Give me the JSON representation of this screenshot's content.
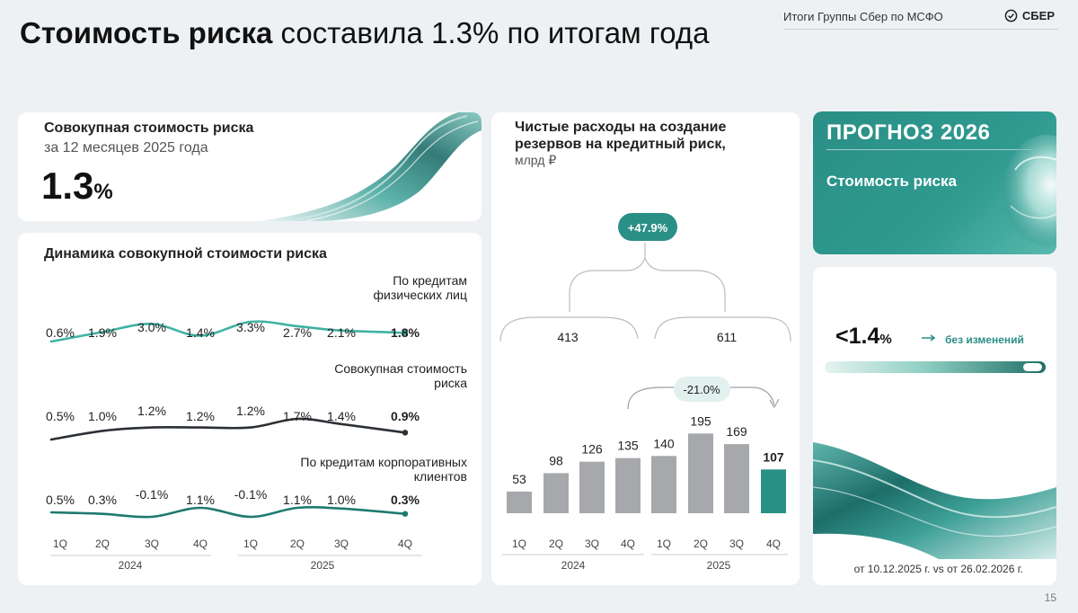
{
  "header": {
    "title_bold": "Стоимость риска",
    "title_rest": " составила 1.3% по итогам года",
    "subtitle": "Итоги Группы Сбер по МСФО",
    "logo_text": "СБЕР",
    "page_number": "15",
    "logo_icon": "check-circle-icon"
  },
  "summary": {
    "label": "Совокупная стоимость риска",
    "sublabel": "за 12 месяцев 2025 года",
    "value": "1.3",
    "unit": "%"
  },
  "forecast": {
    "title": "ПРОГНОЗ 2026",
    "subtitle": "Стоимость риска",
    "value": "<1.4",
    "unit": "%",
    "note": "без изменений",
    "date_note": "от 10.12.2025 г. vs от 26.02.2026 г.",
    "accent": "#2a8f86"
  },
  "chart_data": [
    {
      "type": "line",
      "title": "Динамика совокупной стоимости риска",
      "categories": [
        "1Q",
        "2Q",
        "3Q",
        "4Q",
        "1Q",
        "2Q",
        "3Q",
        "4Q"
      ],
      "groups": [
        {
          "label": "2024",
          "count": 4
        },
        {
          "label": "2025",
          "count": 4
        }
      ],
      "series": [
        {
          "name": "По кредитам физических лиц",
          "name_lines": [
            "По кредитам",
            "физических лиц"
          ],
          "values": [
            0.6,
            1.9,
            3.0,
            1.4,
            3.3,
            2.7,
            2.1,
            1.8
          ],
          "labels": [
            "0.6%",
            "1.9%",
            "3.0%",
            "1.4%",
            "3.3%",
            "2.7%",
            "2.1%",
            "1.8%"
          ],
          "color": "#3fb3a3"
        },
        {
          "name": "Совокупная стоимость риска",
          "name_lines": [
            "Совокупная стоимость",
            "риска"
          ],
          "values": [
            0.5,
            1.0,
            1.2,
            1.2,
            1.2,
            1.7,
            1.4,
            0.9
          ],
          "labels": [
            "0.5%",
            "1.0%",
            "1.2%",
            "1.2%",
            "1.2%",
            "1.7%",
            "1.4%",
            "0.9%"
          ],
          "color": "#2b3035"
        },
        {
          "name": "По кредитам корпоративных клиентов",
          "name_lines": [
            "По кредитам корпоративных",
            "клиентов"
          ],
          "values": [
            0.5,
            0.3,
            -0.1,
            1.1,
            -0.1,
            1.1,
            1.0,
            0.3
          ],
          "labels": [
            "0.5%",
            "0.3%",
            "-0.1%",
            "1.1%",
            "-0.1%",
            "1.1%",
            "1.0%",
            "0.3%"
          ],
          "color": "#1f7a70"
        }
      ]
    },
    {
      "type": "bar",
      "title": "Чистые расходы на создание резервов на кредитный риск,",
      "unit": "млрд ₽",
      "categories": [
        "1Q",
        "2Q",
        "3Q",
        "4Q",
        "1Q",
        "2Q",
        "3Q",
        "4Q"
      ],
      "groups": [
        {
          "label": "2024",
          "count": 4
        },
        {
          "label": "2025",
          "count": 4
        }
      ],
      "values": [
        53,
        98,
        126,
        135,
        140,
        195,
        169,
        107
      ],
      "labels": [
        "53",
        "98",
        "126",
        "135",
        "140",
        "195",
        "169",
        "107"
      ],
      "ylim": [
        0,
        200
      ],
      "colors": {
        "bar": "#a6a8ab",
        "highlight": "#2a8f86"
      },
      "year_totals": [
        "413",
        "611"
      ],
      "growth_label": "+47.9%",
      "qoq_label": "-21.0%"
    }
  ]
}
